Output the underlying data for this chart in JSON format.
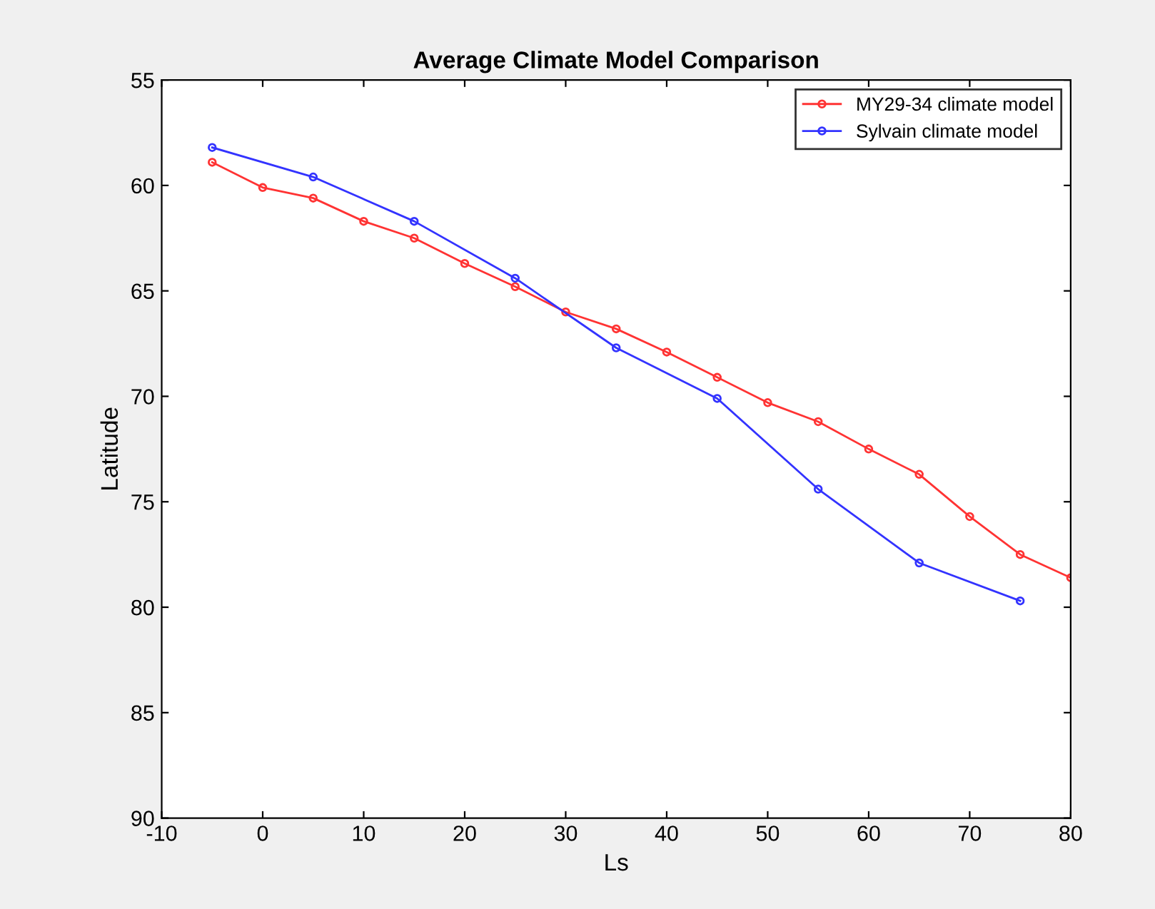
{
  "chart_data": {
    "type": "line",
    "title": "Average Climate Model Comparison",
    "xlabel": "Ls",
    "ylabel": "Latitude",
    "xlim": [
      -10,
      80
    ],
    "xticks": [
      -10,
      0,
      10,
      20,
      30,
      40,
      50,
      60,
      70,
      80
    ],
    "ylim": [
      90,
      55
    ],
    "yticks": [
      55,
      60,
      65,
      70,
      75,
      80,
      85,
      90
    ],
    "grid": false,
    "legend": "top right",
    "marker": "circle",
    "line_style": "solid",
    "series": [
      {
        "name": "MY29-34 climate model",
        "color": "#ff3333",
        "x": [
          -5,
          0,
          5,
          10,
          15,
          20,
          25,
          30,
          35,
          40,
          45,
          50,
          55,
          60,
          65,
          70,
          75,
          80
        ],
        "values": [
          58.9,
          60.1,
          60.6,
          61.7,
          62.5,
          63.7,
          64.8,
          66.0,
          66.8,
          67.9,
          69.1,
          70.3,
          71.2,
          72.5,
          73.7,
          75.7,
          77.5,
          78.6
        ]
      },
      {
        "name": "Sylvain climate model",
        "color": "#3333ff",
        "x": [
          -5,
          5,
          15,
          25,
          35,
          45,
          55,
          65,
          75
        ],
        "values": [
          58.2,
          59.6,
          61.7,
          64.4,
          67.7,
          70.1,
          74.4,
          77.9,
          79.7
        ]
      }
    ]
  }
}
